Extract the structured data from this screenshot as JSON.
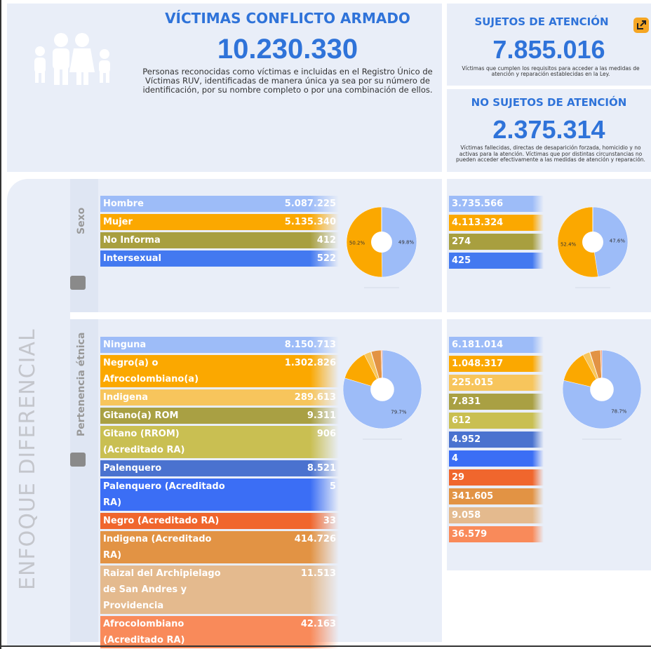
{
  "header": {
    "title": "VÍCTIMAS CONFLICTO ARMADO",
    "total": "10.230.330",
    "description": "Personas reconocidas como víctimas e incluidas en el Registro Único de Víctimas RUV, identificadas de manera única ya sea por su número de identificación, por su nombre completo o por una combinación de ellos."
  },
  "sujetos": {
    "title": "SUJETOS DE ATENCIÓN",
    "total": "7.855.016",
    "description": "Víctimas que cumplen los requisitos para acceder a las medidas de atención y reparación establecidas en la Ley."
  },
  "no_sujetos": {
    "title": "NO SUJETOS DE ATENCIÓN",
    "total": "2.375.314",
    "description": "Víctimas fallecidas, directas de desaparición forzada, homicidio y no activas para la atención. Víctimas que por distintas circunstancias no pueden acceder efectivamente a las medidas de atención y reparación."
  },
  "side_label": "ENFOQUE DIFERENCIAL",
  "sexo": {
    "label": "Sexo",
    "categories": [
      "Hombre",
      "Mujer",
      "No Informa",
      "Intersexual"
    ],
    "colors": [
      "#9dbcf8",
      "#fba800",
      "#a89f3f",
      "#4379f0"
    ],
    "victimas": {
      "values": [
        5087225,
        5135340,
        412,
        522
      ],
      "value_labels": [
        "5.087.225",
        "5.135.340",
        "412",
        "522"
      ],
      "pie_values": [
        49.8,
        50.2,
        null,
        null
      ],
      "pie_value_labels": [
        "49.8%",
        "50.2%",
        null,
        null
      ]
    },
    "sujetos": {
      "values": [
        3735566,
        4113324,
        274,
        425
      ],
      "value_labels": [
        "3.735.566",
        "4.113.324",
        "274",
        "425"
      ],
      "pie_values": [
        47.6,
        52.4,
        null,
        null
      ],
      "pie_value_labels": [
        "47.6%",
        "52.4%",
        null,
        null
      ]
    }
  },
  "etnia": {
    "label": "Pertenencia étnica",
    "categories": [
      "Ninguna",
      "Negro(a) o Afrocolombiano(a)",
      "Indigena",
      "Gitano(a) ROM",
      "Gitano (RROM) (Acreditado RA)",
      "Palenquero",
      "Palenquero (Acreditado RA)",
      "Negro (Acreditado RA)",
      "Indigena (Acreditado RA)",
      "Raizal del Archipielago de San Andres y Providencia",
      "Afrocolombiano (Acreditado RA)"
    ],
    "colors": [
      "#9dbcf8",
      "#fba800",
      "#f7c55c",
      "#a9a043",
      "#c9bf52",
      "#4a72cf",
      "#3b6ef5",
      "#f0662d",
      "#e29344",
      "#e4ba8e",
      "#f98a5a"
    ],
    "victimas": {
      "values": [
        8150713,
        1302826,
        289613,
        9311,
        906,
        8521,
        5,
        33,
        414726,
        11513,
        42163
      ],
      "value_labels": [
        "8.150.713",
        "1.302.826",
        "289.613",
        "9.311",
        "906",
        "8.521",
        "5",
        "33",
        "414.726",
        "11.513",
        "42.163"
      ],
      "pie_values": [
        79.7,
        null,
        null,
        null,
        null,
        null,
        null,
        null,
        null,
        null,
        null
      ],
      "pie_value_labels": [
        "79.7%",
        null,
        null,
        null,
        null,
        null,
        null,
        null,
        null,
        null,
        null
      ]
    },
    "sujetos": {
      "values": [
        6181014,
        1048317,
        225015,
        7831,
        612,
        4952,
        4,
        29,
        341605,
        9058,
        36579
      ],
      "value_labels": [
        "6.181.014",
        "1.048.317",
        "225.015",
        "7.831",
        "612",
        "4.952",
        "4",
        "29",
        "341.605",
        "9.058",
        "36.579"
      ],
      "pie_values": [
        78.7,
        null,
        null,
        null,
        null,
        null,
        null,
        null,
        null,
        null,
        null
      ],
      "pie_value_labels": [
        "78.7%",
        null,
        null,
        null,
        null,
        null,
        null,
        null,
        null,
        null,
        null
      ]
    }
  }
}
